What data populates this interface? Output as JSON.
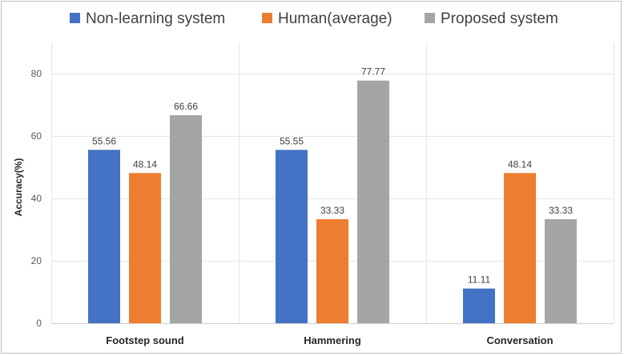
{
  "chart_data": {
    "type": "bar",
    "categories": [
      "Footstep sound",
      "Hammering",
      "Conversation"
    ],
    "series": [
      {
        "name": "Non-learning system",
        "values": [
          55.56,
          55.55,
          11.11
        ],
        "color": "#4472c4"
      },
      {
        "name": "Human(average)",
        "values": [
          48.14,
          33.33,
          48.14
        ],
        "color": "#ed7d31"
      },
      {
        "name": "Proposed system",
        "values": [
          66.66,
          77.77,
          33.33
        ],
        "color": "#a5a5a5"
      }
    ],
    "ylabel": "Accuracy(%)",
    "ylim": [
      0,
      90
    ],
    "yticks": [
      0,
      20,
      40,
      60,
      80
    ],
    "grid": true,
    "legend": "top"
  }
}
